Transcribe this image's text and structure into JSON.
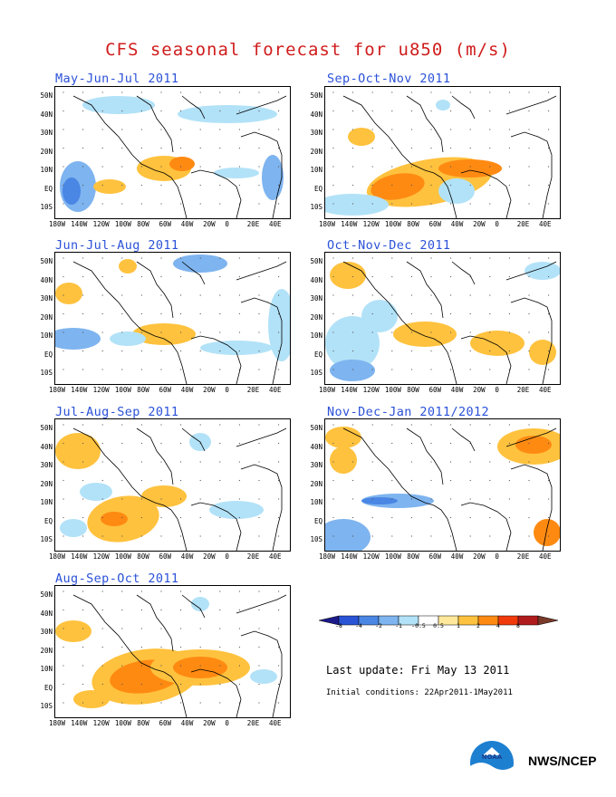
{
  "title": "CFS seasonal forecast for u850 (m/s)",
  "panels": [
    {
      "title": "May-Jun-Jul 2011"
    },
    {
      "title": "Sep-Oct-Nov 2011"
    },
    {
      "title": "Jun-Jul-Aug 2011"
    },
    {
      "title": "Oct-Nov-Dec 2011"
    },
    {
      "title": "Jul-Aug-Sep 2011"
    },
    {
      "title": "Nov-Dec-Jan 2011/2012"
    },
    {
      "title": "Aug-Sep-Oct 2011"
    }
  ],
  "lat_labels": [
    "50N",
    "40N",
    "30N",
    "20N",
    "10N",
    "EQ",
    "10S"
  ],
  "lon_labels": [
    "180W",
    "140W",
    "120W",
    "100W",
    "80W",
    "60W",
    "40W",
    "20W",
    "0",
    "20E",
    "40E"
  ],
  "colorbar": {
    "labels": [
      "-8",
      "-4",
      "-2",
      "-1",
      "-0.5",
      "0.5",
      "1",
      "2",
      "4",
      "8"
    ],
    "colors": [
      "#1c1a8a",
      "#2a54d6",
      "#4a86e4",
      "#7eb4ef",
      "#b2e2f8",
      "#ffffff",
      "#ffe89a",
      "#ffc23e",
      "#ff8a12",
      "#f03a0c",
      "#b01c1c",
      "#7a3a2a"
    ]
  },
  "last_update": "Last update: Fri May 13 2011",
  "initial_conditions": "Initial conditions: 22Apr2011-1May2011",
  "agency": "NWS/NCEP",
  "logo_text": "NOAA"
}
